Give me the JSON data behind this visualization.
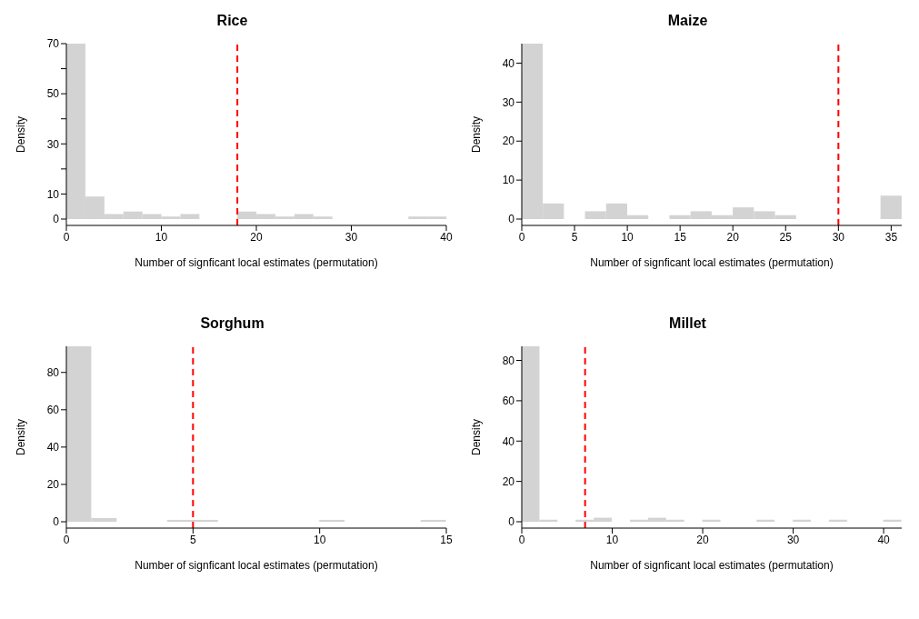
{
  "chart_data": [
    {
      "type": "histogram",
      "title": "Rice",
      "xlabel": "Number of signficant local estimates (permutation)",
      "ylabel": "Density",
      "color": "#d3d3d3",
      "bins": [
        0,
        2,
        4,
        6,
        8,
        10,
        12,
        14,
        16,
        18,
        20,
        22,
        24,
        26,
        28,
        30,
        32,
        34,
        36,
        38,
        40
      ],
      "values": [
        70,
        9,
        2,
        3,
        2,
        1,
        2,
        0,
        0,
        3,
        2,
        1,
        2,
        1,
        0,
        0,
        0,
        0,
        1,
        1
      ],
      "xlim": [
        0,
        40
      ],
      "xticks": [
        0,
        10,
        20,
        30,
        40
      ],
      "ylim": [
        0,
        70
      ],
      "yticks": [
        0,
        10,
        {
          "value": 20,
          "label": null
        },
        30,
        {
          "value": 40,
          "label": null
        },
        50,
        {
          "value": 60,
          "label": null
        },
        70
      ],
      "ref_lines": [
        {
          "axis": "x",
          "value": 18,
          "color": "#ff0000",
          "line_style": "dashed"
        }
      ]
    },
    {
      "type": "histogram",
      "title": "Maize",
      "xlabel": "Number of signficant local estimates (permutation)",
      "ylabel": "Density",
      "color": "#d3d3d3",
      "bins": [
        0,
        2,
        4,
        6,
        8,
        10,
        12,
        14,
        16,
        18,
        20,
        22,
        24,
        26,
        28,
        30,
        32,
        34,
        36
      ],
      "values": [
        45,
        4,
        0,
        2,
        4,
        1,
        0,
        1,
        2,
        1,
        3,
        2,
        1,
        0,
        0,
        0,
        0,
        6
      ],
      "xlim": [
        0,
        36
      ],
      "xticks": [
        0,
        5,
        10,
        15,
        20,
        25,
        30,
        35
      ],
      "ylim": [
        0,
        45
      ],
      "yticks": [
        0,
        10,
        20,
        30,
        40
      ],
      "ref_lines": [
        {
          "axis": "x",
          "value": 30,
          "color": "#ff0000",
          "line_style": "dashed"
        }
      ]
    },
    {
      "type": "histogram",
      "title": "Sorghum",
      "xlabel": "Number of signficant local estimates (permutation)",
      "ylabel": "Density",
      "color": "#d3d3d3",
      "bins": [
        0,
        1,
        2,
        3,
        4,
        5,
        6,
        7,
        8,
        9,
        10,
        11,
        12,
        13,
        14,
        15
      ],
      "values": [
        94,
        2,
        0,
        0,
        1,
        1,
        0,
        0,
        0,
        0,
        1,
        0,
        0,
        0,
        1
      ],
      "xlim": [
        0,
        15
      ],
      "xticks": [
        0,
        5,
        10,
        15
      ],
      "ylim": [
        0,
        94
      ],
      "yticks": [
        0,
        20,
        40,
        60,
        80
      ],
      "ref_lines": [
        {
          "axis": "x",
          "value": 5,
          "color": "#ff0000",
          "line_style": "dashed"
        }
      ]
    },
    {
      "type": "histogram",
      "title": "Millet",
      "xlabel": "Number of signficant local estimates (permutation)",
      "ylabel": "Density",
      "color": "#d3d3d3",
      "bins": [
        0,
        2,
        4,
        6,
        8,
        10,
        12,
        14,
        16,
        18,
        20,
        22,
        24,
        26,
        28,
        30,
        32,
        34,
        36,
        38,
        40,
        42
      ],
      "values": [
        87,
        1,
        0,
        1,
        2,
        0,
        1,
        2,
        1,
        0,
        1,
        0,
        0,
        1,
        0,
        1,
        0,
        1,
        0,
        0,
        1
      ],
      "xlim": [
        0,
        42
      ],
      "xticks": [
        0,
        10,
        20,
        30,
        40
      ],
      "ylim": [
        0,
        87
      ],
      "yticks": [
        0,
        20,
        40,
        60,
        80
      ],
      "ref_lines": [
        {
          "axis": "x",
          "value": 7,
          "color": "#ff0000",
          "line_style": "dashed"
        }
      ]
    }
  ]
}
